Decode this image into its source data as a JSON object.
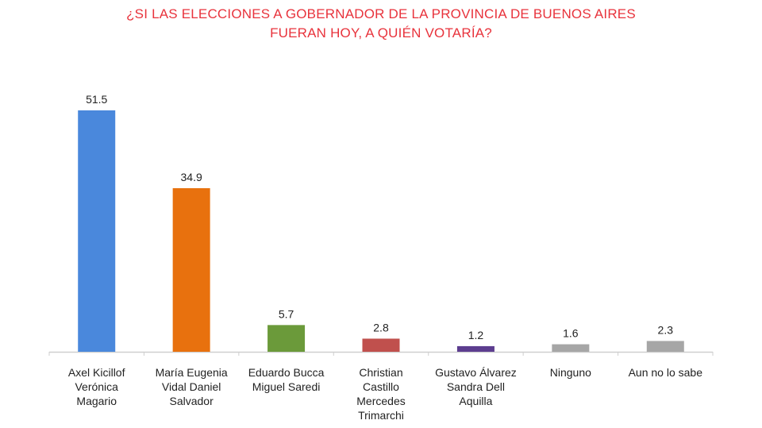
{
  "chart_data": {
    "type": "bar",
    "title_lines": [
      "¿SI LAS ELECCIONES A GOBERNADOR DE LA PROVINCIA DE BUENOS AIRES",
      "FUERAN HOY, A QUIÉN VOTARÍA?"
    ],
    "categories": [
      [
        "Axel Kicillof",
        "Verónica",
        "Magario"
      ],
      [
        "María Eugenia",
        "Vidal Daniel",
        "Salvador"
      ],
      [
        "Eduardo Bucca",
        "Miguel Saredi"
      ],
      [
        "Christian",
        "Castillo",
        "Mercedes",
        "Trimarchi"
      ],
      [
        "Gustavo Álvarez",
        "Sandra Dell",
        "Aquilla"
      ],
      [
        "Ninguno"
      ],
      [
        "Aun no lo sabe"
      ]
    ],
    "values": [
      51.5,
      34.9,
      5.7,
      2.8,
      1.2,
      1.6,
      2.3
    ],
    "value_labels": [
      "51.5",
      "34.9",
      "5.7",
      "2.8",
      "1.2",
      "1.6",
      "2.3"
    ],
    "colors": [
      "#4a88dc",
      "#e8710e",
      "#6b9a3a",
      "#c0504d",
      "#5c3d8f",
      "#a6a6a6",
      "#a6a6a6"
    ],
    "ylim": [
      0,
      51.5
    ],
    "grid": false,
    "legend": "none"
  }
}
